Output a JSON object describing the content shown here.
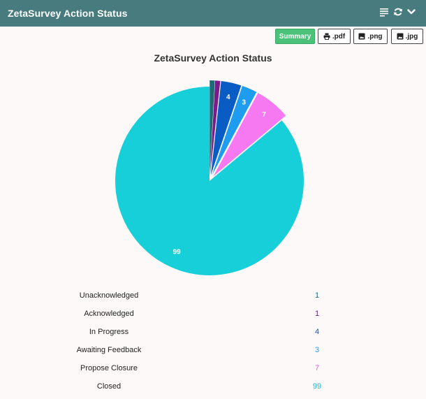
{
  "header": {
    "title": "ZetaSurvey Action Status",
    "icons": [
      "list-icon",
      "refresh-icon",
      "chevron-down-icon"
    ]
  },
  "toolbar": {
    "summary": "Summary",
    "pdf": ".pdf",
    "png": ".png",
    "jpg": ".jpg"
  },
  "chart_data": {
    "type": "pie",
    "title": "ZetaSurvey Action Status",
    "categories": [
      "Unacknowledged",
      "Acknowledged",
      "In Progress",
      "Awaiting Feedback",
      "Propose Closure",
      "Closed"
    ],
    "values": [
      1,
      1,
      4,
      3,
      7,
      99
    ],
    "colors": [
      "#1e6b78",
      "#7a1a8c",
      "#0a5cc5",
      "#1e9df0",
      "#f779f1",
      "#16cfd8"
    ],
    "data_labels": [
      "",
      "",
      "4",
      "3",
      "7",
      "99"
    ],
    "exploded": [
      true,
      true,
      true,
      true,
      true,
      false
    ]
  },
  "legend": [
    {
      "label": "Unacknowledged",
      "value": "1",
      "color": "#1e6b78"
    },
    {
      "label": "Acknowledged",
      "value": "1",
      "color": "#6a1a7c"
    },
    {
      "label": "In Progress",
      "value": "4",
      "color": "#0a5cc5"
    },
    {
      "label": "Awaiting Feedback",
      "value": "3",
      "color": "#1e9df0"
    },
    {
      "label": "Propose Closure",
      "value": "7",
      "color": "#e25ee0"
    },
    {
      "label": "Closed",
      "value": "99",
      "color": "#16b8d0"
    }
  ]
}
